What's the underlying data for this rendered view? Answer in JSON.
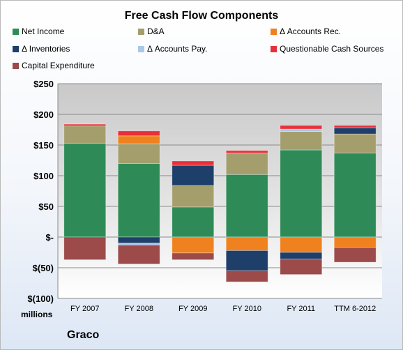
{
  "chart_data": {
    "type": "bar",
    "stacked": true,
    "title": "Free Cash Flow Components",
    "ylabel": "millions",
    "ylim": [
      -100,
      250
    ],
    "yticks": [
      -100,
      -50,
      0,
      50,
      100,
      150,
      200,
      250
    ],
    "ytick_labels": [
      "$(100)",
      "$(50)",
      "$-",
      "$50",
      "$100",
      "$150",
      "$200",
      "$250"
    ],
    "grid": true,
    "legend_position": "top",
    "categories": [
      "FY 2007",
      "FY 2008",
      "FY 2009",
      "FY 2010",
      "FY 2011",
      "TTM 6-2012"
    ],
    "series": [
      {
        "name": "Net Income",
        "color": "#2e8b57",
        "values": [
          153,
          120,
          49,
          102,
          142,
          137
        ]
      },
      {
        "name": "D&A",
        "color": "#a49e6c",
        "values": [
          28,
          32,
          35,
          35,
          30,
          31
        ]
      },
      {
        "name": "Δ Accounts Rec.",
        "color": "#f0811f",
        "values": [
          0,
          13,
          -26,
          -22,
          -25,
          -17
        ]
      },
      {
        "name": "Δ Inventories",
        "color": "#1f3f6b",
        "values": [
          0,
          -10,
          33,
          -33,
          -11,
          10
        ]
      },
      {
        "name": "Δ Accounts Pay.",
        "color": "#a9c8ea",
        "values": [
          0,
          -3,
          0,
          0,
          4,
          0
        ]
      },
      {
        "name": "Questionable Cash Sources",
        "color": "#e8303a",
        "values": [
          3,
          8,
          7,
          4,
          6,
          4
        ]
      },
      {
        "name": "Capital Expenditure",
        "color": "#9c4a4a",
        "values": [
          -37,
          -31,
          -11,
          -18,
          -25,
          -24
        ]
      }
    ]
  },
  "footer": {
    "company": "Graco"
  }
}
